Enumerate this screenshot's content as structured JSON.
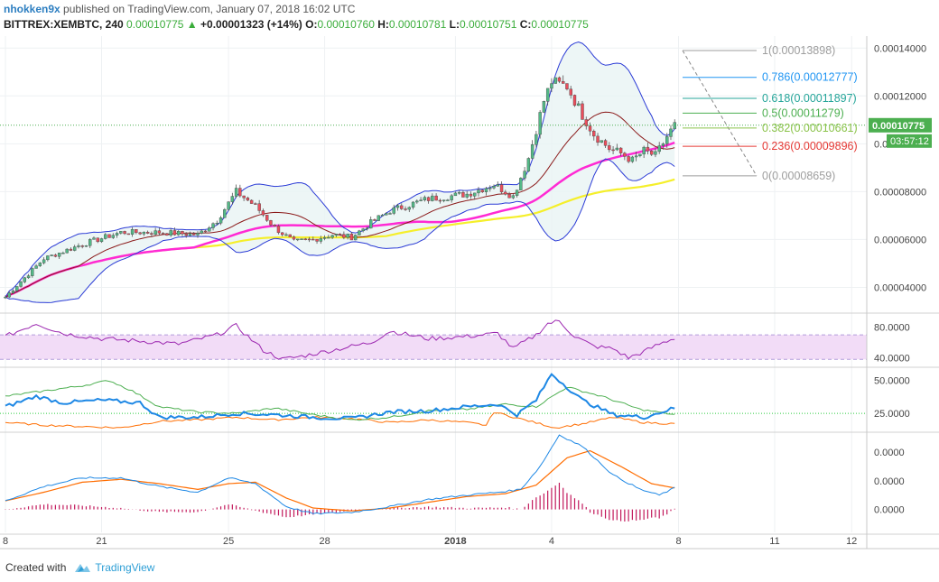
{
  "header": {
    "author": "nhokken9x",
    "published_text": "published on TradingView.com, January 07, 2018 16:02 UTC",
    "symbol": "BITTREX:XEMBTC, 240",
    "price": "0.00010775",
    "change_arrow": "▲",
    "change": "+0.00001323 (+14%)",
    "o_label": "O:",
    "o": "0.00010760",
    "h_label": "H:",
    "h": "0.00010781",
    "l_label": "L:",
    "l": "0.00010751",
    "c_label": "C:",
    "c": "0.00010775"
  },
  "footer": {
    "created_with": "Created with",
    "brand": "TradingView"
  },
  "colors": {
    "up": "#53b987",
    "down": "#eb4d5c",
    "bollinger": "#2b3bd6",
    "bollinger_fill": "#e8f4f4",
    "sma_fast": "#8b1a1a",
    "sma_mid": "#ff2ad4",
    "sma_slow": "#f5ef2a",
    "rsi": "#9c27b0",
    "rsi_band": "#f2dcf7",
    "dmi_main": "#1e88e5",
    "dmi_plus": "#4caf50",
    "dmi_minus": "#ff6d00",
    "macd": "#1e88e5",
    "signal": "#ff6d00",
    "hist": "#c2185b",
    "price_label_bg": "#4caf50"
  },
  "chart_data": [
    {
      "type": "candlestick",
      "pane": "price",
      "ylim": [
        3e-05,
        0.000145
      ],
      "yticks": [
        "0.00014000",
        "0.00012000",
        "0.00010000",
        "0.00008000",
        "0.00006000",
        "0.00004000"
      ],
      "yticks_values": [
        0.00014,
        0.00012,
        0.0001,
        8e-05,
        6e-05,
        4e-05
      ],
      "last_price_label": "0.00010775",
      "last_price": 0.00010775,
      "countdown_label": "03:57:12",
      "xticks": [
        "8",
        "21",
        "25",
        "28",
        "2018",
        "4",
        "8",
        "11",
        "12"
      ],
      "xticks_index": [
        0,
        25,
        58,
        83,
        117,
        142,
        175,
        200,
        220
      ],
      "fib_levels": [
        {
          "label": "1(0.00013898)",
          "value": 0.00013898,
          "color": "#9e9e9e"
        },
        {
          "label": "0.786(0.00012777)",
          "value": 0.00012777,
          "color": "#2196f3"
        },
        {
          "label": "0.618(0.00011897)",
          "value": 0.00011897,
          "color": "#26a69a"
        },
        {
          "label": "0.5(0.00011279)",
          "value": 0.00011279,
          "color": "#4caf50"
        },
        {
          "label": "0.382(0.00010661)",
          "value": 0.00010661,
          "color": "#8bc34a"
        },
        {
          "label": "0.236(0.00009896)",
          "value": 9.896e-05,
          "color": "#e53935"
        },
        {
          "label": "0(0.00008659)",
          "value": 8.659e-05,
          "color": "#9e9e9e"
        }
      ],
      "anchors": [
        {
          "i": 0,
          "v": 3.6e-05
        },
        {
          "i": 10,
          "v": 5.2e-05
        },
        {
          "i": 20,
          "v": 5.8e-05
        },
        {
          "i": 30,
          "v": 6.3e-05
        },
        {
          "i": 40,
          "v": 6.3e-05
        },
        {
          "i": 50,
          "v": 6.2e-05
        },
        {
          "i": 55,
          "v": 6.8e-05
        },
        {
          "i": 60,
          "v": 8e-05
        },
        {
          "i": 65,
          "v": 7.4e-05
        },
        {
          "i": 70,
          "v": 6.5e-05
        },
        {
          "i": 75,
          "v": 5.9e-05
        },
        {
          "i": 80,
          "v": 6e-05
        },
        {
          "i": 85,
          "v": 6.2e-05
        },
        {
          "i": 90,
          "v": 6.1e-05
        },
        {
          "i": 95,
          "v": 6.7e-05
        },
        {
          "i": 100,
          "v": 7.2e-05
        },
        {
          "i": 110,
          "v": 7.7e-05
        },
        {
          "i": 120,
          "v": 7.9e-05
        },
        {
          "i": 127,
          "v": 8.3e-05
        },
        {
          "i": 132,
          "v": 7.8e-05
        },
        {
          "i": 136,
          "v": 9.4e-05
        },
        {
          "i": 140,
          "v": 0.000118
        },
        {
          "i": 142,
          "v": 0.000126
        },
        {
          "i": 146,
          "v": 0.000124
        },
        {
          "i": 150,
          "v": 0.000112
        },
        {
          "i": 153,
          "v": 0.000104
        },
        {
          "i": 157,
          "v": 9.8e-05
        },
        {
          "i": 160,
          "v": 9.6e-05
        },
        {
          "i": 163,
          "v": 9.3e-05
        },
        {
          "i": 166,
          "v": 9.7e-05
        },
        {
          "i": 169,
          "v": 9.5e-05
        },
        {
          "i": 172,
          "v": 0.000103
        },
        {
          "i": 174,
          "v": 0.0001077
        }
      ]
    },
    {
      "type": "line",
      "pane": "rsi",
      "ylim": [
        30,
        95
      ],
      "yticks": [
        "80.0000",
        "40.0000"
      ],
      "yticks_values": [
        80,
        40
      ],
      "band": [
        38,
        70
      ],
      "anchors": [
        {
          "i": 0,
          "v": 68
        },
        {
          "i": 8,
          "v": 85
        },
        {
          "i": 15,
          "v": 72
        },
        {
          "i": 25,
          "v": 65
        },
        {
          "i": 35,
          "v": 62
        },
        {
          "i": 45,
          "v": 58
        },
        {
          "i": 55,
          "v": 70
        },
        {
          "i": 60,
          "v": 82
        },
        {
          "i": 67,
          "v": 50
        },
        {
          "i": 72,
          "v": 38
        },
        {
          "i": 77,
          "v": 42
        },
        {
          "i": 85,
          "v": 50
        },
        {
          "i": 95,
          "v": 60
        },
        {
          "i": 100,
          "v": 75
        },
        {
          "i": 110,
          "v": 65
        },
        {
          "i": 120,
          "v": 68
        },
        {
          "i": 128,
          "v": 72
        },
        {
          "i": 132,
          "v": 52
        },
        {
          "i": 138,
          "v": 70
        },
        {
          "i": 141,
          "v": 85
        },
        {
          "i": 144,
          "v": 88
        },
        {
          "i": 148,
          "v": 68
        },
        {
          "i": 153,
          "v": 55
        },
        {
          "i": 158,
          "v": 52
        },
        {
          "i": 162,
          "v": 40
        },
        {
          "i": 166,
          "v": 48
        },
        {
          "i": 170,
          "v": 58
        },
        {
          "i": 174,
          "v": 66
        }
      ]
    },
    {
      "type": "line",
      "pane": "dmi",
      "ylim": [
        12,
        58
      ],
      "yticks": [
        "50.0000",
        "25.0000"
      ],
      "yticks_values": [
        50,
        25
      ],
      "level": 25,
      "series": [
        {
          "key": "main",
          "anchors": [
            {
              "i": 0,
              "v": 30
            },
            {
              "i": 8,
              "v": 38
            },
            {
              "i": 15,
              "v": 33
            },
            {
              "i": 25,
              "v": 35
            },
            {
              "i": 35,
              "v": 33
            },
            {
              "i": 40,
              "v": 22
            },
            {
              "i": 50,
              "v": 22
            },
            {
              "i": 60,
              "v": 25
            },
            {
              "i": 70,
              "v": 24
            },
            {
              "i": 80,
              "v": 22
            },
            {
              "i": 90,
              "v": 21
            },
            {
              "i": 100,
              "v": 26
            },
            {
              "i": 110,
              "v": 27
            },
            {
              "i": 120,
              "v": 30
            },
            {
              "i": 128,
              "v": 32
            },
            {
              "i": 133,
              "v": 24
            },
            {
              "i": 138,
              "v": 35
            },
            {
              "i": 142,
              "v": 55
            },
            {
              "i": 150,
              "v": 35
            },
            {
              "i": 158,
              "v": 24
            },
            {
              "i": 166,
              "v": 22
            },
            {
              "i": 174,
              "v": 29
            }
          ]
        },
        {
          "key": "plus",
          "anchors": [
            {
              "i": 0,
              "v": 38
            },
            {
              "i": 10,
              "v": 42
            },
            {
              "i": 20,
              "v": 46
            },
            {
              "i": 27,
              "v": 50
            },
            {
              "i": 33,
              "v": 42
            },
            {
              "i": 40,
              "v": 30
            },
            {
              "i": 50,
              "v": 26
            },
            {
              "i": 60,
              "v": 25
            },
            {
              "i": 70,
              "v": 29
            },
            {
              "i": 80,
              "v": 24
            },
            {
              "i": 90,
              "v": 20
            },
            {
              "i": 100,
              "v": 22
            },
            {
              "i": 110,
              "v": 27
            },
            {
              "i": 120,
              "v": 28
            },
            {
              "i": 130,
              "v": 32
            },
            {
              "i": 138,
              "v": 30
            },
            {
              "i": 146,
              "v": 45
            },
            {
              "i": 155,
              "v": 38
            },
            {
              "i": 165,
              "v": 28
            },
            {
              "i": 174,
              "v": 24
            }
          ]
        },
        {
          "key": "minus",
          "anchors": [
            {
              "i": 0,
              "v": 18
            },
            {
              "i": 10,
              "v": 16
            },
            {
              "i": 20,
              "v": 15
            },
            {
              "i": 30,
              "v": 14
            },
            {
              "i": 40,
              "v": 19
            },
            {
              "i": 50,
              "v": 20
            },
            {
              "i": 60,
              "v": 22
            },
            {
              "i": 70,
              "v": 20
            },
            {
              "i": 80,
              "v": 22
            },
            {
              "i": 90,
              "v": 21
            },
            {
              "i": 100,
              "v": 18
            },
            {
              "i": 110,
              "v": 20
            },
            {
              "i": 120,
              "v": 18
            },
            {
              "i": 125,
              "v": 16
            },
            {
              "i": 127,
              "v": 26
            },
            {
              "i": 135,
              "v": 20
            },
            {
              "i": 143,
              "v": 14
            },
            {
              "i": 150,
              "v": 17
            },
            {
              "i": 158,
              "v": 22
            },
            {
              "i": 166,
              "v": 18
            },
            {
              "i": 174,
              "v": 17
            }
          ]
        }
      ]
    },
    {
      "type": "macd",
      "pane": "macd",
      "ylim": [
        -0.8,
        2.6
      ],
      "yticks": [
        "0.0000",
        "0.0000",
        "0.0000"
      ],
      "yticks_values": [
        2,
        1,
        0
      ],
      "series": [
        {
          "key": "macd",
          "anchors": [
            {
              "i": 0,
              "v": 0.3
            },
            {
              "i": 10,
              "v": 0.8
            },
            {
              "i": 20,
              "v": 1.1
            },
            {
              "i": 30,
              "v": 1.1
            },
            {
              "i": 40,
              "v": 0.8
            },
            {
              "i": 50,
              "v": 0.6
            },
            {
              "i": 58,
              "v": 1.1
            },
            {
              "i": 65,
              "v": 0.9
            },
            {
              "i": 73,
              "v": 0.1
            },
            {
              "i": 80,
              "v": -0.15
            },
            {
              "i": 90,
              "v": -0.1
            },
            {
              "i": 100,
              "v": 0.1
            },
            {
              "i": 110,
              "v": 0.35
            },
            {
              "i": 120,
              "v": 0.5
            },
            {
              "i": 128,
              "v": 0.6
            },
            {
              "i": 134,
              "v": 0.7
            },
            {
              "i": 139,
              "v": 1.5
            },
            {
              "i": 144,
              "v": 2.6
            },
            {
              "i": 150,
              "v": 2.2
            },
            {
              "i": 158,
              "v": 1.2
            },
            {
              "i": 165,
              "v": 0.7
            },
            {
              "i": 170,
              "v": 0.5
            },
            {
              "i": 174,
              "v": 0.75
            }
          ]
        },
        {
          "key": "signal",
          "anchors": [
            {
              "i": 0,
              "v": 0.3
            },
            {
              "i": 10,
              "v": 0.6
            },
            {
              "i": 20,
              "v": 0.95
            },
            {
              "i": 30,
              "v": 1.05
            },
            {
              "i": 40,
              "v": 0.9
            },
            {
              "i": 50,
              "v": 0.7
            },
            {
              "i": 58,
              "v": 0.9
            },
            {
              "i": 65,
              "v": 0.95
            },
            {
              "i": 73,
              "v": 0.4
            },
            {
              "i": 80,
              "v": 0.05
            },
            {
              "i": 90,
              "v": -0.05
            },
            {
              "i": 100,
              "v": 0.05
            },
            {
              "i": 110,
              "v": 0.25
            },
            {
              "i": 120,
              "v": 0.45
            },
            {
              "i": 130,
              "v": 0.55
            },
            {
              "i": 138,
              "v": 0.85
            },
            {
              "i": 146,
              "v": 1.8
            },
            {
              "i": 152,
              "v": 2.05
            },
            {
              "i": 160,
              "v": 1.5
            },
            {
              "i": 168,
              "v": 0.9
            },
            {
              "i": 174,
              "v": 0.75
            }
          ]
        }
      ]
    }
  ]
}
